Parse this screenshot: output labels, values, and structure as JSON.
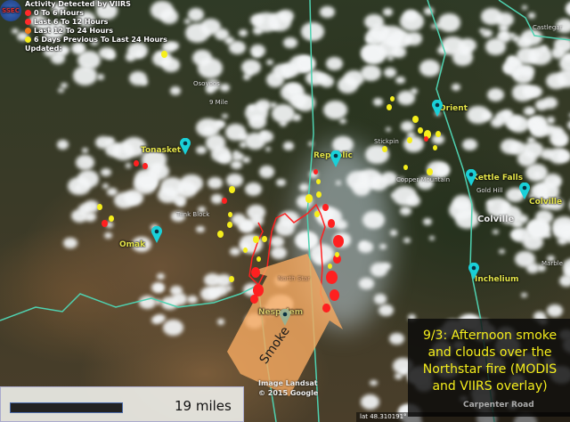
{
  "legend": {
    "logo_text": "SSEC",
    "title": "Activity Detected by VIIRS",
    "items": [
      {
        "label": "0 To 6 Hours",
        "color": "#ff2a2a"
      },
      {
        "label": "Last 6 To 12 Hours",
        "color": "#ff2a2a"
      },
      {
        "label": "Last 12 To 24 Hours",
        "color": "#f07a1a"
      },
      {
        "label": "6 Days Previous To Last 24 Hours",
        "color": "#f5ee1c"
      }
    ],
    "updated": "Updated:"
  },
  "places": {
    "tonasket": "Tonasket",
    "omak": "Omak",
    "republic": "Republic",
    "orient": "Orient",
    "kettle_falls": "Kettle Falls",
    "colville_pin": "Colville",
    "inchelium": "Inchelium",
    "nespelem": "Nespelem"
  },
  "minor_places": {
    "osoyoos": "Osoyoos",
    "nine_mile": "9 Mile",
    "tunk_block": "Tunk Block",
    "castlegar": "Castlegar",
    "sitzmark": "Stickpin",
    "gold_hill": "Gold Hill",
    "copper_mountain": "Copper Mountain",
    "marble": "Marble",
    "north_star": "North Star",
    "colville_area": "Colville",
    "carpenter_road": "Carpenter Road"
  },
  "annotation": {
    "arrow_label": "Smoke",
    "arrow_color": "#f4a860",
    "caption_lines": [
      "9/3: Afternoon smoke",
      "and clouds over the",
      "Northstar fire (MODIS",
      "and VIIRS overlay)"
    ],
    "caption_color": "#f5ee1c"
  },
  "scale": {
    "label": "19 miles"
  },
  "credits": {
    "line1": "Image Landsat",
    "line2": "© 2015 Google"
  },
  "status": {
    "lat": "lat  48.310191°"
  },
  "colors": {
    "fire_recent": "#ff2020",
    "fire_old": "#f5ee1c",
    "border": "#4fd1b0",
    "pin": "#1ad0d8"
  }
}
